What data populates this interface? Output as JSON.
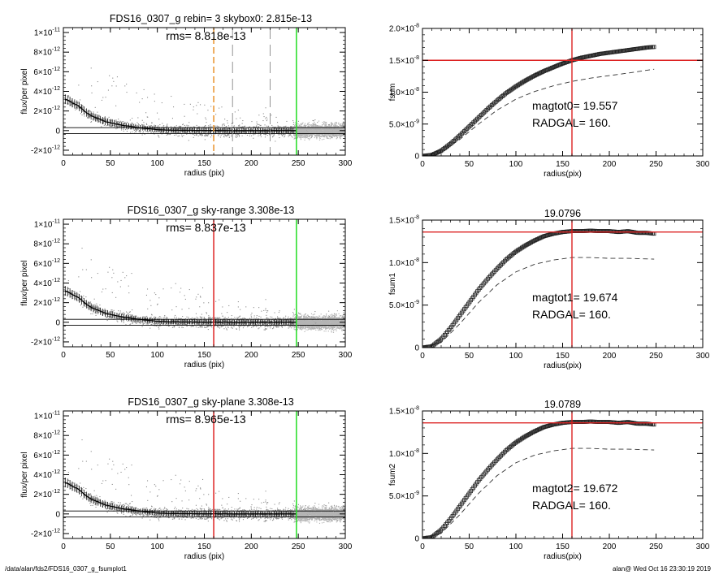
{
  "footer": {
    "path": "/data/alan/fds2/FDS16_0307_g_fsumplot1",
    "stamp": "alan@  Wed Oct 16 23:30:19 2019"
  },
  "chart_data": [
    {
      "type": "scatter",
      "title": "FDS16_0307_g rebin= 3    skybox0:  2.815e-13",
      "annotation": "rms= 8.818e-13",
      "xlabel": "radius (pix)",
      "ylabel": "flux/per pixel",
      "xlim": [
        0,
        300
      ],
      "ylim": [
        -2.5e-12,
        1.05e-11
      ],
      "xticks": [
        0,
        50,
        100,
        150,
        200,
        250,
        300
      ],
      "yticks": [
        {
          "value": -2e-12,
          "mant": "-2×10",
          "exp": "-12"
        },
        {
          "value": 0,
          "mant": "0",
          "exp": ""
        },
        {
          "value": 2e-12,
          "mant": "2×10",
          "exp": "-12"
        },
        {
          "value": 4e-12,
          "mant": "4×10",
          "exp": "-12"
        },
        {
          "value": 6e-12,
          "mant": "6×10",
          "exp": "-12"
        },
        {
          "value": 8e-12,
          "mant": "8×10",
          "exp": "-12"
        },
        {
          "value": 1e-11,
          "mant": "1×10",
          "exp": "-11"
        }
      ],
      "sky_lines": [
        3e-13,
        -3e-13
      ],
      "vlines": [
        {
          "x": 160,
          "color": "#e8912a",
          "style": "dashed"
        },
        {
          "x": 180,
          "color": "#888888",
          "style": "longdash"
        },
        {
          "x": 220,
          "color": "#888888",
          "style": "longdash"
        },
        {
          "x": 248,
          "color": "#22dd22",
          "style": "solid"
        }
      ],
      "profile": {
        "x": [
          2,
          5,
          10,
          15,
          20,
          25,
          30,
          35,
          40,
          45,
          50,
          55,
          60,
          65,
          70,
          80,
          90,
          100,
          110,
          120,
          140,
          160,
          180,
          200,
          220,
          248
        ],
        "y": [
          3.2e-12,
          3.1e-12,
          2.8e-12,
          2.6e-12,
          2.2e-12,
          1.8e-12,
          1.5e-12,
          1.3e-12,
          1.1e-12,
          9e-13,
          8e-13,
          7e-13,
          6e-13,
          5e-13,
          4.5e-13,
          3e-13,
          2e-13,
          1e-13,
          5e-14,
          3e-14,
          2e-14,
          1e-14,
          0,
          0,
          0,
          0
        ]
      }
    },
    {
      "type": "line",
      "title": "",
      "annotations": [
        "magtot0=  19.557",
        "RADGAL=     160."
      ],
      "xlabel": "radius(pix)",
      "ylabel": "fsum",
      "xlim": [
        0,
        300
      ],
      "ylim": [
        0,
        2e-08
      ],
      "xticks": [
        0,
        50,
        100,
        150,
        200,
        250,
        300
      ],
      "yticks": [
        {
          "value": 0,
          "mant": "0",
          "exp": ""
        },
        {
          "value": 5e-09,
          "mant": "5.0×10",
          "exp": "-9"
        },
        {
          "value": 1e-08,
          "mant": "1.0×10",
          "exp": "-8"
        },
        {
          "value": 1.5e-08,
          "mant": "1.5×10",
          "exp": "-8"
        },
        {
          "value": 2e-08,
          "mant": "2.0×10",
          "exp": "-8"
        }
      ],
      "vline": 160,
      "hline": 1.5e-08,
      "curve": {
        "x": [
          0,
          10,
          20,
          30,
          40,
          50,
          60,
          70,
          80,
          90,
          100,
          110,
          120,
          130,
          140,
          150,
          160,
          170,
          180,
          190,
          200,
          210,
          220,
          230,
          240,
          248
        ],
        "y": [
          0,
          1.5e-10,
          8e-10,
          1.9e-09,
          3.2e-09,
          4.6e-09,
          6e-09,
          7.4e-09,
          8.7e-09,
          9.9e-09,
          1.09e-08,
          1.18e-08,
          1.26e-08,
          1.33e-08,
          1.39e-08,
          1.45e-08,
          1.5e-08,
          1.54e-08,
          1.57e-08,
          1.6e-08,
          1.62e-08,
          1.64e-08,
          1.66e-08,
          1.68e-08,
          1.7e-08,
          1.71e-08
        ]
      },
      "dashed": {
        "x": [
          0,
          20,
          40,
          60,
          80,
          100,
          120,
          140,
          160,
          180,
          200,
          220,
          248
        ],
        "y": [
          0,
          6e-10,
          2.6e-09,
          5e-09,
          7.2e-09,
          8.9e-09,
          1.01e-08,
          1.1e-08,
          1.17e-08,
          1.22e-08,
          1.26e-08,
          1.3e-08,
          1.36e-08
        ]
      }
    },
    {
      "type": "scatter",
      "title": "FDS16_0307_g sky-range  3.308e-13",
      "annotation": "rms= 8.837e-13",
      "xlabel": "radius (pix)",
      "ylabel": "flux/per pixel",
      "xlim": [
        0,
        300
      ],
      "ylim": [
        -2.5e-12,
        1.05e-11
      ],
      "xticks": [
        0,
        50,
        100,
        150,
        200,
        250,
        300
      ],
      "yticks": [
        {
          "value": -2e-12,
          "mant": "-2×10",
          "exp": "-12"
        },
        {
          "value": 0,
          "mant": "0",
          "exp": ""
        },
        {
          "value": 2e-12,
          "mant": "2×10",
          "exp": "-12"
        },
        {
          "value": 4e-12,
          "mant": "4×10",
          "exp": "-12"
        },
        {
          "value": 6e-12,
          "mant": "6×10",
          "exp": "-12"
        },
        {
          "value": 8e-12,
          "mant": "8×10",
          "exp": "-12"
        },
        {
          "value": 1e-11,
          "mant": "1×10",
          "exp": "-11"
        }
      ],
      "sky_lines": [
        3e-13,
        -3e-13
      ],
      "vlines": [
        {
          "x": 160,
          "color": "#dd2222",
          "style": "solid"
        },
        {
          "x": 248,
          "color": "#22dd22",
          "style": "solid"
        }
      ],
      "profile": {
        "x": [
          2,
          5,
          10,
          15,
          20,
          25,
          30,
          35,
          40,
          45,
          50,
          55,
          60,
          65,
          70,
          80,
          90,
          100,
          110,
          120,
          140,
          160,
          180,
          200,
          220,
          248
        ],
        "y": [
          3.2e-12,
          3.1e-12,
          2.8e-12,
          2.6e-12,
          2.2e-12,
          1.8e-12,
          1.5e-12,
          1.3e-12,
          1.1e-12,
          9e-13,
          8e-13,
          7e-13,
          6e-13,
          5e-13,
          4.5e-13,
          3e-13,
          2e-13,
          1e-13,
          5e-14,
          3e-14,
          2e-14,
          1e-14,
          0,
          0,
          0,
          0
        ]
      }
    },
    {
      "type": "line",
      "title": "19.0796",
      "annotations": [
        "magtot1=  19.674",
        "RADGAL=     160."
      ],
      "xlabel": "radius(pix)",
      "ylabel": "fsum1",
      "xlim": [
        0,
        300
      ],
      "ylim": [
        0,
        1.5e-08
      ],
      "xticks": [
        0,
        50,
        100,
        150,
        200,
        250,
        300
      ],
      "yticks": [
        {
          "value": 0,
          "mant": "0",
          "exp": ""
        },
        {
          "value": 5e-09,
          "mant": "5.0×10",
          "exp": "-9"
        },
        {
          "value": 1e-08,
          "mant": "1.0×10",
          "exp": "-8"
        },
        {
          "value": 1.5e-08,
          "mant": "1.5×10",
          "exp": "-8"
        }
      ],
      "vline": 160,
      "hline": 1.36e-08,
      "curve": {
        "x": [
          0,
          10,
          20,
          30,
          40,
          50,
          60,
          70,
          80,
          90,
          100,
          110,
          120,
          130,
          140,
          150,
          160,
          170,
          180,
          190,
          200,
          210,
          220,
          230,
          240,
          248
        ],
        "y": [
          0,
          1.5e-10,
          1e-09,
          2.3e-09,
          3.8e-09,
          5.3e-09,
          6.8e-09,
          8.1e-09,
          9.3e-09,
          1.04e-08,
          1.13e-08,
          1.2e-08,
          1.26e-08,
          1.31e-08,
          1.34e-08,
          1.36e-08,
          1.37e-08,
          1.37e-08,
          1.375e-08,
          1.37e-08,
          1.37e-08,
          1.36e-08,
          1.37e-08,
          1.35e-08,
          1.35e-08,
          1.34e-08
        ]
      },
      "dashed": {
        "x": [
          0,
          20,
          40,
          60,
          80,
          100,
          120,
          140,
          160,
          180,
          200,
          220,
          248
        ],
        "y": [
          0,
          6e-10,
          2.8e-09,
          5.3e-09,
          7.4e-09,
          8.9e-09,
          9.8e-09,
          1.03e-08,
          1.06e-08,
          1.06e-08,
          1.05e-08,
          1.05e-08,
          1.04e-08
        ]
      }
    },
    {
      "type": "scatter",
      "title": "FDS16_0307_g sky-plane  3.308e-13",
      "annotation": "rms= 8.965e-13",
      "xlabel": "radius (pix)",
      "ylabel": "flux/per pixel",
      "xlim": [
        0,
        300
      ],
      "ylim": [
        -2.5e-12,
        1.05e-11
      ],
      "xticks": [
        0,
        50,
        100,
        150,
        200,
        250,
        300
      ],
      "yticks": [
        {
          "value": -2e-12,
          "mant": "-2×10",
          "exp": "-12"
        },
        {
          "value": 0,
          "mant": "0",
          "exp": ""
        },
        {
          "value": 2e-12,
          "mant": "2×10",
          "exp": "-12"
        },
        {
          "value": 4e-12,
          "mant": "4×10",
          "exp": "-12"
        },
        {
          "value": 6e-12,
          "mant": "6×10",
          "exp": "-12"
        },
        {
          "value": 8e-12,
          "mant": "8×10",
          "exp": "-12"
        },
        {
          "value": 1e-11,
          "mant": "1×10",
          "exp": "-11"
        }
      ],
      "sky_lines": [
        3e-13,
        -3e-13
      ],
      "vlines": [
        {
          "x": 160,
          "color": "#dd2222",
          "style": "solid"
        },
        {
          "x": 248,
          "color": "#22dd22",
          "style": "solid"
        }
      ],
      "profile": {
        "x": [
          2,
          5,
          10,
          15,
          20,
          25,
          30,
          35,
          40,
          45,
          50,
          55,
          60,
          65,
          70,
          80,
          90,
          100,
          110,
          120,
          140,
          160,
          180,
          200,
          220,
          248
        ],
        "y": [
          3.2e-12,
          3.1e-12,
          2.8e-12,
          2.6e-12,
          2.2e-12,
          1.8e-12,
          1.5e-12,
          1.3e-12,
          1.1e-12,
          9e-13,
          8e-13,
          7e-13,
          6e-13,
          5e-13,
          4.5e-13,
          3e-13,
          2e-13,
          1e-13,
          5e-14,
          3e-14,
          2e-14,
          1e-14,
          0,
          0,
          0,
          0
        ]
      }
    },
    {
      "type": "line",
      "title": "19.0789",
      "annotations": [
        "magtot2=  19.672",
        "RADGAL=     160."
      ],
      "xlabel": "radius(pix)",
      "ylabel": "fsum2",
      "xlim": [
        0,
        300
      ],
      "ylim": [
        0,
        1.5e-08
      ],
      "xticks": [
        0,
        50,
        100,
        150,
        200,
        250,
        300
      ],
      "yticks": [
        {
          "value": 0,
          "mant": "0",
          "exp": ""
        },
        {
          "value": 5e-09,
          "mant": "5.0×10",
          "exp": "-9"
        },
        {
          "value": 1e-08,
          "mant": "1.0×10",
          "exp": "-8"
        },
        {
          "value": 1.5e-08,
          "mant": "1.5×10",
          "exp": "-8"
        }
      ],
      "vline": 160,
      "hline": 1.36e-08,
      "curve": {
        "x": [
          0,
          10,
          20,
          30,
          40,
          50,
          60,
          70,
          80,
          90,
          100,
          110,
          120,
          130,
          140,
          150,
          160,
          170,
          180,
          190,
          200,
          210,
          220,
          230,
          240,
          248
        ],
        "y": [
          0,
          1.5e-10,
          1e-09,
          2.3e-09,
          3.8e-09,
          5.3e-09,
          6.8e-09,
          8.1e-09,
          9.3e-09,
          1.04e-08,
          1.13e-08,
          1.2e-08,
          1.26e-08,
          1.31e-08,
          1.34e-08,
          1.36e-08,
          1.37e-08,
          1.37e-08,
          1.375e-08,
          1.37e-08,
          1.37e-08,
          1.36e-08,
          1.37e-08,
          1.35e-08,
          1.35e-08,
          1.34e-08
        ]
      },
      "dashed": {
        "x": [
          0,
          20,
          40,
          60,
          80,
          100,
          120,
          140,
          160,
          180,
          200,
          220,
          248
        ],
        "y": [
          0,
          6e-10,
          2.8e-09,
          5.3e-09,
          7.4e-09,
          8.9e-09,
          9.8e-09,
          1.03e-08,
          1.06e-08,
          1.06e-08,
          1.05e-08,
          1.05e-08,
          1.04e-08
        ]
      }
    }
  ]
}
